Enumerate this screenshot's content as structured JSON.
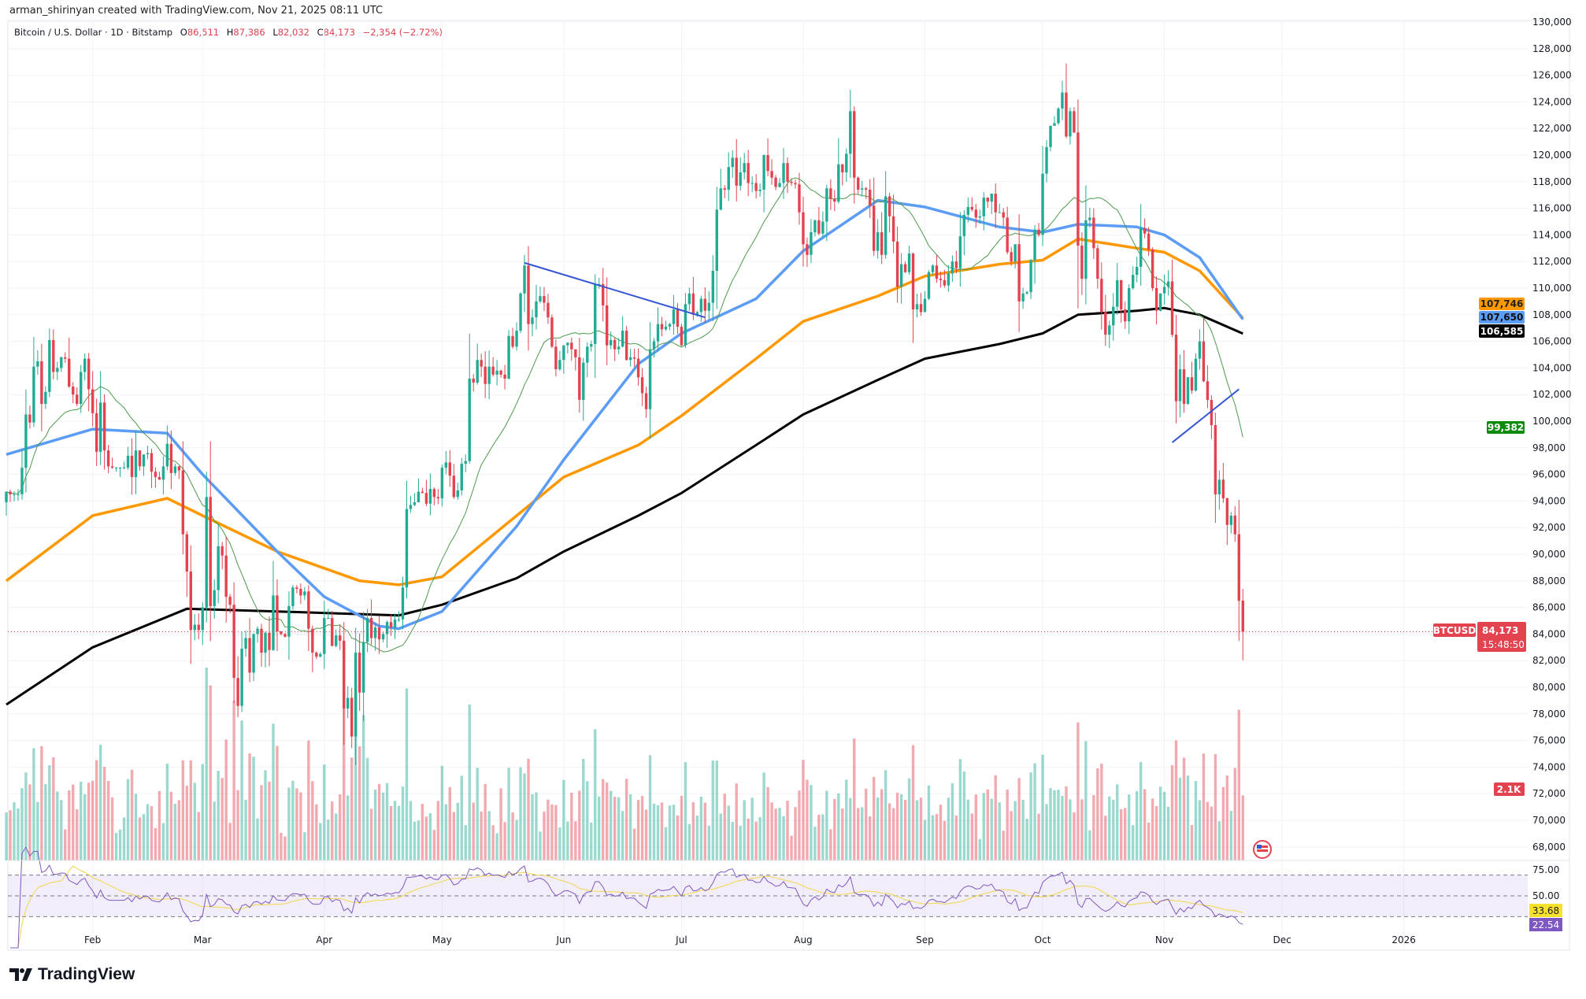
{
  "header": {
    "credit": "arman_shirinyan created with TradingView.com, Nov 21, 2025 08:11 UTC",
    "symbol": "Bitcoin / U.S. Dollar · 1D · Bitstamp",
    "o_label": "O",
    "o": "86,511",
    "h_label": "H",
    "h": "87,386",
    "l_label": "L",
    "l": "82,032",
    "c_label": "C",
    "c": "84,173",
    "change": "−2,354 (−2.72%)"
  },
  "logo": "TradingView",
  "tags": {
    "ma_orange": "107,746",
    "ma_blue": "107,650",
    "ma_black": "106,585",
    "ma_green": "99,382",
    "symbol": "BTCUSD",
    "last_price": "84,173",
    "countdown": "15:48:50",
    "volume": "2.1K",
    "rsi_ma": "33.68",
    "rsi": "22.54"
  },
  "colors": {
    "up": "#22ab94",
    "down": "#e2434f",
    "ma_orange": "#ff9800",
    "ma_blue": "#5b9cf6",
    "ma_black": "#000000",
    "ma_green": "#4c9a4c",
    "rsi": "#7e57c2",
    "rsi_ma": "#f2d64b",
    "trendline": "#3656d6",
    "tag_green": "#0b8a0b"
  },
  "chart_data": {
    "type": "candlestick",
    "start_date": "2025-01-10",
    "interval": "1D",
    "ylim": [
      67000,
      130000
    ],
    "price_ticks": [
      "130,000",
      "128,000",
      "126,000",
      "124,000",
      "122,000",
      "120,000",
      "118,000",
      "116,000",
      "114,000",
      "112,000",
      "110,000",
      "108,000",
      "106,000",
      "104,000",
      "102,000",
      "100,000",
      "98,000",
      "96,000",
      "94,000",
      "92,000",
      "90,000",
      "88,000",
      "86,000",
      "84,000",
      "82,000",
      "80,000",
      "78,000",
      "76,000",
      "74,000",
      "72,000",
      "70,000",
      "68,000"
    ],
    "time_ticks": [
      {
        "label": "Feb",
        "date": "2025-02-01"
      },
      {
        "label": "Mar",
        "date": "2025-03-01"
      },
      {
        "label": "Apr",
        "date": "2025-04-01"
      },
      {
        "label": "May",
        "date": "2025-05-01"
      },
      {
        "label": "Jun",
        "date": "2025-06-01"
      },
      {
        "label": "Jul",
        "date": "2025-07-01"
      },
      {
        "label": "Aug",
        "date": "2025-08-01"
      },
      {
        "label": "Sep",
        "date": "2025-09-01"
      },
      {
        "label": "Oct",
        "date": "2025-10-01"
      },
      {
        "label": "Nov",
        "date": "2025-11-01"
      },
      {
        "label": "Dec",
        "date": "2025-12-01"
      },
      {
        "label": "2026",
        "date": "2026-01-01"
      }
    ],
    "last_candle": {
      "open": 86511,
      "high": 87386,
      "low": 82032,
      "close": 84173
    },
    "closes": [
      94700,
      94500,
      94500,
      94500,
      96500,
      100500,
      99900,
      104100,
      104500,
      101300,
      102200,
      106100,
      103700,
      104000,
      104800,
      104700,
      102600,
      102000,
      101300,
      103700,
      104700,
      102400,
      100600,
      97700,
      101400,
      97800,
      96600,
      96500,
      96500,
      96500,
      96500,
      97400,
      95800,
      97800,
      96600,
      97500,
      97600,
      96200,
      95800,
      95600,
      96600,
      98300,
      96100,
      96600,
      96300,
      91500,
      88700,
      84300,
      84700,
      84300,
      86000,
      94300,
      86100,
      87300,
      90600,
      89900,
      86800,
      86200,
      80700,
      78600,
      82900,
      83700,
      81100,
      84000,
      84400,
      82600,
      84100,
      82800,
      86900,
      84200,
      84000,
      83800,
      86100,
      87500,
      87400,
      86900,
      87200,
      84400,
      82600,
      82300,
      82500,
      85200,
      85200,
      83100,
      83900,
      83500,
      78400,
      79200,
      76300,
      82600,
      79600,
      83400,
      85200,
      83700,
      84500,
      83600,
      84000,
      84900,
      84500,
      85100,
      85100,
      87500,
      93400,
      93700,
      93900,
      94700,
      94600,
      93800,
      94900,
      94300,
      94200,
      96500,
      96900,
      95900,
      94300,
      94800,
      96800,
      97000,
      103200,
      102900,
      104600,
      104100,
      102800,
      104100,
      103500,
      103800,
      103500,
      103200,
      106400,
      105600,
      106800,
      109600,
      111700,
      107300,
      107800,
      109000,
      109400,
      108900,
      107800,
      105600,
      103900,
      104600,
      105700,
      105900,
      105400,
      104800,
      101600,
      104400,
      105600,
      105800,
      110300,
      110300,
      108700,
      105700,
      106100,
      105400,
      105600,
      106800,
      104600,
      104800,
      104700,
      103300,
      102100,
      100900,
      105400,
      106000,
      107300,
      106900,
      107100,
      107300,
      108400,
      107100,
      105700,
      108800,
      109600,
      108000,
      108200,
      109200,
      108300,
      108900,
      111300,
      115900,
      117500,
      117400,
      119100,
      119800,
      117700,
      118700,
      119400,
      117900,
      117900,
      117300,
      117400,
      120000,
      118800,
      118300,
      117600,
      117900,
      119400,
      118000,
      117900,
      117800,
      115700,
      113300,
      112500,
      114200,
      115100,
      114100,
      115000,
      117500,
      116700,
      116500,
      119300,
      118700,
      120100,
      123300,
      118300,
      117400,
      117500,
      117400,
      116200,
      112800,
      114200,
      112500,
      116900,
      115400,
      113500,
      110100,
      111800,
      111200,
      112600,
      108400,
      108800,
      108200,
      109200,
      111200,
      111700,
      110700,
      110600,
      110200,
      111100,
      112000,
      111500,
      113900,
      115500,
      116100,
      115900,
      115300,
      115400,
      116800,
      116500,
      117100,
      115700,
      115700,
      115300,
      112700,
      112000,
      113300,
      109000,
      109600,
      109700,
      112100,
      114400,
      114000,
      118600,
      120600,
      122200,
      122400,
      123500,
      124700,
      121400,
      123300,
      121700,
      113200,
      110700,
      115100,
      115300,
      113000,
      110700,
      108200,
      106500,
      107200,
      108600,
      110600,
      108400,
      107500,
      110000,
      111000,
      111600,
      114500,
      114100,
      112900,
      110000,
      108300,
      109600,
      110100,
      110500,
      106500,
      101500,
      103900,
      101300,
      103300,
      102300,
      104700,
      106000,
      103000,
      101600,
      99700,
      94500,
      95600,
      94200,
      92200,
      92900,
      91500,
      86500,
      84173
    ],
    "moving_averages": [
      {
        "color_key": "ma_black",
        "points": [
          [
            "2025-01-10",
            78700
          ],
          [
            "2025-02-01",
            83000
          ],
          [
            "2025-02-25",
            85900
          ],
          [
            "2025-03-20",
            85700
          ],
          [
            "2025-04-20",
            85400
          ],
          [
            "2025-05-01",
            86200
          ],
          [
            "2025-05-20",
            88200
          ],
          [
            "2025-06-01",
            90200
          ],
          [
            "2025-06-20",
            92900
          ],
          [
            "2025-07-01",
            94600
          ],
          [
            "2025-07-20",
            98200
          ],
          [
            "2025-08-01",
            100500
          ],
          [
            "2025-08-20",
            103100
          ],
          [
            "2025-09-01",
            104700
          ],
          [
            "2025-09-20",
            105800
          ],
          [
            "2025-10-01",
            106600
          ],
          [
            "2025-10-10",
            108000
          ],
          [
            "2025-10-25",
            108300
          ],
          [
            "2025-11-01",
            108500
          ],
          [
            "2025-11-10",
            108000
          ],
          [
            "2025-11-21",
            106585
          ]
        ]
      },
      {
        "color_key": "ma_orange",
        "points": [
          [
            "2025-01-10",
            88000
          ],
          [
            "2025-02-01",
            92900
          ],
          [
            "2025-02-20",
            94200
          ],
          [
            "2025-03-01",
            92900
          ],
          [
            "2025-03-20",
            90200
          ],
          [
            "2025-04-10",
            88000
          ],
          [
            "2025-04-20",
            87700
          ],
          [
            "2025-05-01",
            88300
          ],
          [
            "2025-05-20",
            92900
          ],
          [
            "2025-06-01",
            95800
          ],
          [
            "2025-06-20",
            98200
          ],
          [
            "2025-07-01",
            100400
          ],
          [
            "2025-07-20",
            104700
          ],
          [
            "2025-08-01",
            107500
          ],
          [
            "2025-08-20",
            109400
          ],
          [
            "2025-09-01",
            110900
          ],
          [
            "2025-09-20",
            111800
          ],
          [
            "2025-10-01",
            112100
          ],
          [
            "2025-10-10",
            113700
          ],
          [
            "2025-10-25",
            113000
          ],
          [
            "2025-11-01",
            112700
          ],
          [
            "2025-11-10",
            111300
          ],
          [
            "2025-11-21",
            107746
          ]
        ]
      },
      {
        "color_key": "ma_blue",
        "points": [
          [
            "2025-01-10",
            97500
          ],
          [
            "2025-02-01",
            99400
          ],
          [
            "2025-02-20",
            99100
          ],
          [
            "2025-03-01",
            96000
          ],
          [
            "2025-03-20",
            90200
          ],
          [
            "2025-04-01",
            86800
          ],
          [
            "2025-04-15",
            84600
          ],
          [
            "2025-04-20",
            84400
          ],
          [
            "2025-05-01",
            85700
          ],
          [
            "2025-05-20",
            92100
          ],
          [
            "2025-06-01",
            97100
          ],
          [
            "2025-06-20",
            104300
          ],
          [
            "2025-07-01",
            106600
          ],
          [
            "2025-07-20",
            109200
          ],
          [
            "2025-08-01",
            112800
          ],
          [
            "2025-08-20",
            116600
          ],
          [
            "2025-09-01",
            116100
          ],
          [
            "2025-09-20",
            114600
          ],
          [
            "2025-10-01",
            114200
          ],
          [
            "2025-10-10",
            114800
          ],
          [
            "2025-10-25",
            114600
          ],
          [
            "2025-11-01",
            114000
          ],
          [
            "2025-11-10",
            112300
          ],
          [
            "2025-11-21",
            107650
          ]
        ]
      }
    ],
    "trendlines": [
      {
        "from": [
          "2025-05-22",
          111900
        ],
        "to": [
          "2025-07-07",
          107800
        ]
      },
      {
        "from": [
          "2025-11-03",
          98400
        ],
        "to": [
          "2025-11-20",
          102400
        ]
      }
    ],
    "rsi_ticks": [
      "75.00",
      "50.00"
    ],
    "rsi_levels": [
      70,
      50,
      30
    ]
  }
}
